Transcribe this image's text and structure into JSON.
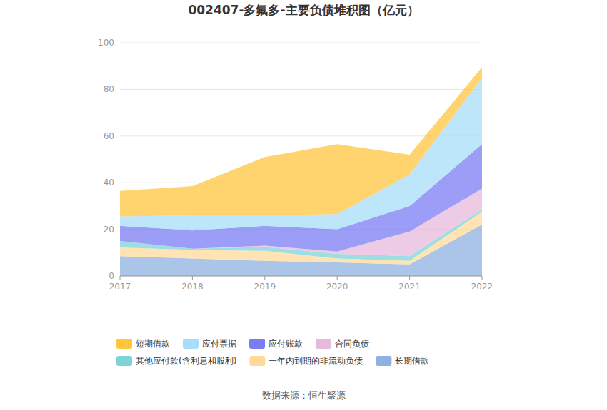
{
  "chart_data": {
    "type": "area",
    "title": "002407-多氟多-主要负债堆积图（亿元）",
    "source": "数据来源：恒生聚源",
    "categories": [
      "2017",
      "2018",
      "2019",
      "2020",
      "2021",
      "2022"
    ],
    "stacked": true,
    "grid": true,
    "legend": "bottom",
    "ylim": [
      0,
      100
    ],
    "yticks": [
      0,
      20,
      40,
      60,
      80,
      100
    ],
    "series": [
      {
        "name": "短期借款",
        "color": "#ffc53d",
        "values": [
          11,
          12.5,
          25,
          30,
          8.5,
          4.5
        ]
      },
      {
        "name": "应付票据",
        "color": "#a8ddfa",
        "values": [
          4,
          6.5,
          4.5,
          6.5,
          13.5,
          28.5
        ]
      },
      {
        "name": "应付账款",
        "color": "#7b7cf3",
        "values": [
          6.5,
          7.8,
          8.5,
          9.5,
          11,
          19
        ]
      },
      {
        "name": "合同负债",
        "color": "#e8b9dc",
        "values": [
          0,
          0,
          0.5,
          1,
          10.5,
          9
        ]
      },
      {
        "name": "其他应付款(含利息和股利)",
        "color": "#7ed3d8",
        "values": [
          2.8,
          0.5,
          1.7,
          2,
          2,
          1
        ]
      },
      {
        "name": "一年内到期的非流动负债",
        "color": "#ffd999",
        "values": [
          3.7,
          3.7,
          4.3,
          1.7,
          1.5,
          5.5
        ]
      },
      {
        "name": "长期借款",
        "color": "#8fb1e0",
        "values": [
          8.5,
          7.5,
          6.5,
          5.8,
          5,
          22
        ]
      }
    ]
  }
}
